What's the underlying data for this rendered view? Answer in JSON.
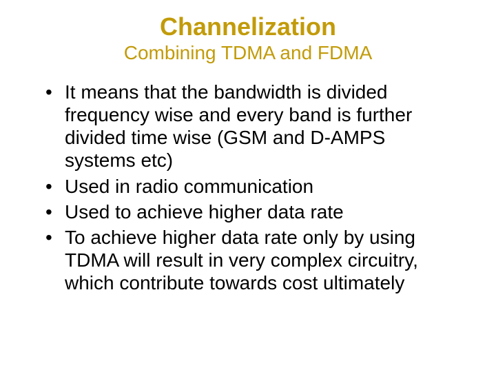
{
  "title": {
    "text": "Channelization",
    "color": "#c29b0a",
    "fontsize": 36,
    "font_weight": "bold"
  },
  "subtitle": {
    "text": "Combining TDMA and FDMA",
    "color": "#c29b0a",
    "fontsize": 28,
    "font_weight": "normal"
  },
  "bullets": {
    "items": [
      "It means that the bandwidth is divided frequency wise and every band is further divided time wise (GSM and D-AMPS systems etc)",
      "Used in radio communication",
      "Used to achieve higher data rate",
      "To achieve higher data rate only by using TDMA will result in very complex circuitry, which contribute towards cost ultimately"
    ],
    "fontsize": 28,
    "text_color": "#000000",
    "bullet_char": "•"
  },
  "background_color": "#ffffff"
}
